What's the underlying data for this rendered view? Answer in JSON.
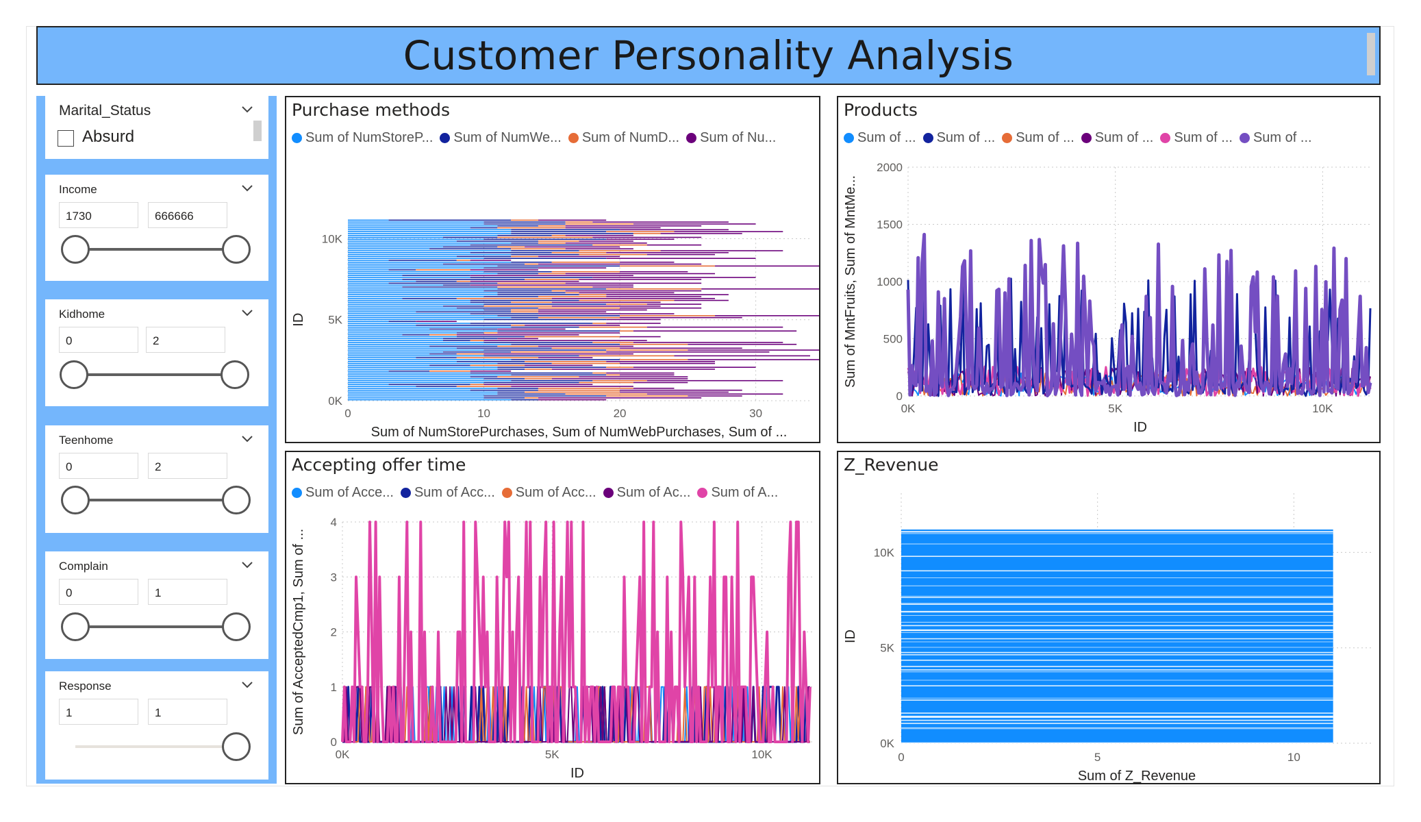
{
  "title": "Customer Personality Analysis",
  "colors": {
    "header_bg": "#74b6fc",
    "series": [
      "#118dff",
      "#12239e",
      "#e66c37",
      "#6b007b",
      "#e044a7",
      "#744ec2"
    ]
  },
  "slicers": {
    "marital": {
      "title": "Marital_Status",
      "option": "Absurd",
      "checked": false
    },
    "income": {
      "title": "Income",
      "min": "1730",
      "max": "666666"
    },
    "kidhome": {
      "title": "Kidhome",
      "min": "0",
      "max": "2"
    },
    "teenhome": {
      "title": "Teenhome",
      "min": "0",
      "max": "2"
    },
    "complain": {
      "title": "Complain",
      "min": "0",
      "max": "1"
    },
    "response": {
      "title": "Response",
      "min": "1",
      "max": "1"
    }
  },
  "icons": [
    "chevron-down-icon",
    "checkbox-icon",
    "legend-dot-icon"
  ],
  "chart_data": [
    {
      "id": "purchase",
      "type": "bar",
      "orientation": "horizontal-stacked",
      "title": "Purchase methods",
      "legend": [
        "Sum of NumStoreP...",
        "Sum of NumWe...",
        "Sum of NumD...",
        "Sum of Nu..."
      ],
      "xlabel": "Sum of NumStorePurchases, Sum of NumWebPurchases, Sum of ...",
      "ylabel": "ID",
      "x_ticks": [
        "0",
        "10",
        "20",
        "30"
      ],
      "y_ticks": [
        "0K",
        "5K",
        "10K"
      ],
      "xlim": [
        0,
        34
      ],
      "ylim": [
        0,
        11200
      ],
      "series": [
        {
          "name": "Sum of NumStoreP...",
          "values_range": [
            0,
            13
          ]
        },
        {
          "name": "Sum of NumWe...",
          "values_range": [
            0,
            11
          ]
        },
        {
          "name": "Sum of NumD...",
          "values_range": [
            0,
            10
          ]
        },
        {
          "name": "Sum of Nu...",
          "values_range": [
            0,
            15
          ]
        }
      ]
    },
    {
      "id": "products",
      "type": "line",
      "title": "Products",
      "legend": [
        "Sum of ...",
        "Sum of ...",
        "Sum of ...",
        "Sum of ...",
        "Sum of ...",
        "Sum of ..."
      ],
      "xlabel": "ID",
      "ylabel": "Sum of MntFruits, Sum of MntMe...",
      "x_ticks": [
        "0K",
        "5K",
        "10K"
      ],
      "y_ticks": [
        "0",
        "500",
        "1000",
        "1500",
        "2000"
      ],
      "xlim": [
        0,
        11200
      ],
      "ylim": [
        0,
        2000
      ],
      "series_max": [
        200,
        1500,
        200,
        250,
        260,
        1500
      ]
    },
    {
      "id": "accepting",
      "type": "line",
      "title": "Accepting offer time",
      "legend": [
        "Sum of Acce...",
        "Sum of Acc...",
        "Sum of Acc...",
        "Sum of Ac...",
        "Sum of A..."
      ],
      "xlabel": "ID",
      "ylabel": "Sum of AcceptedCmp1, Sum of ...",
      "x_ticks": [
        "0K",
        "5K",
        "10K"
      ],
      "y_ticks": [
        "0",
        "1",
        "2",
        "3",
        "4"
      ],
      "xlim": [
        0,
        11200
      ],
      "ylim": [
        0,
        4
      ]
    },
    {
      "id": "zrevenue",
      "type": "bar",
      "orientation": "horizontal",
      "title": "Z_Revenue",
      "xlabel": "Sum of Z_Revenue",
      "ylabel": "ID",
      "x_ticks": [
        "0",
        "5",
        "10"
      ],
      "y_ticks": [
        "0K",
        "5K",
        "10K"
      ],
      "xlim": [
        0,
        12
      ],
      "ylim": [
        0,
        11200
      ],
      "constant_value": 11
    }
  ]
}
